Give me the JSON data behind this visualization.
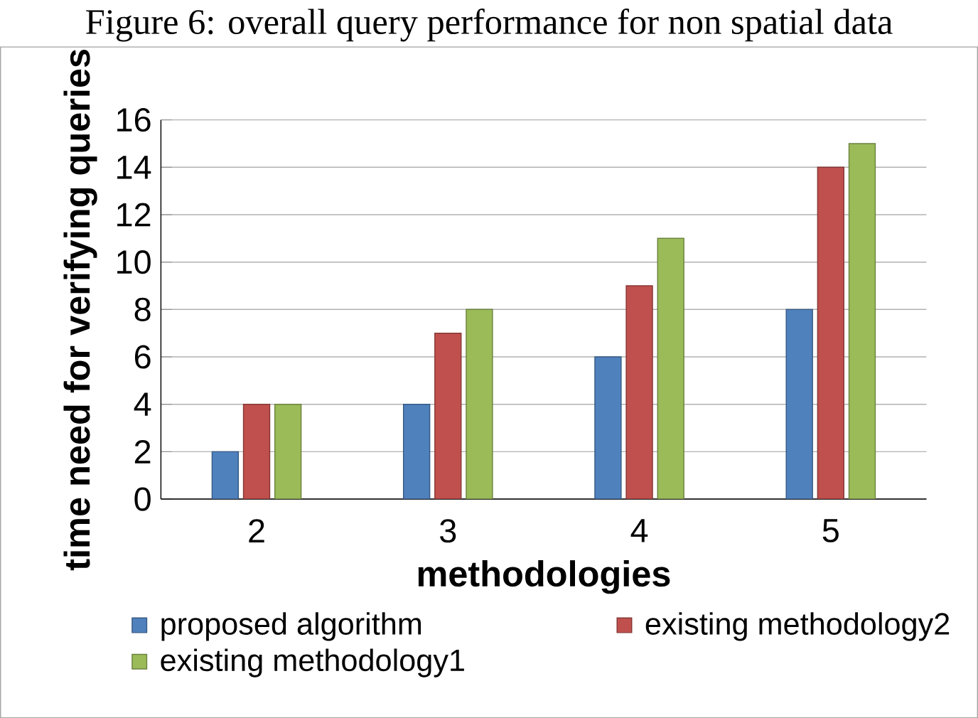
{
  "chart_data": {
    "type": "bar",
    "title": "Figure 6: overall query performance for non spatial data",
    "xlabel": "methodologies",
    "ylabel": "time need for verifying queries",
    "categories": [
      "2",
      "3",
      "4",
      "5"
    ],
    "series": [
      {
        "name": "proposed algorithm",
        "color": "#4f81bd",
        "values": [
          2,
          4,
          6,
          8
        ]
      },
      {
        "name": "existing methodology2",
        "color": "#c0504d",
        "values": [
          4,
          7,
          9,
          14
        ]
      },
      {
        "name": "existing methodology1",
        "color": "#9bbb59",
        "values": [
          4,
          8,
          11,
          15
        ]
      }
    ],
    "ylim": [
      0,
      16
    ],
    "yticks": [
      0,
      2,
      4,
      6,
      8,
      10,
      12,
      14,
      16
    ],
    "grid": "y",
    "legend": "bottom"
  }
}
